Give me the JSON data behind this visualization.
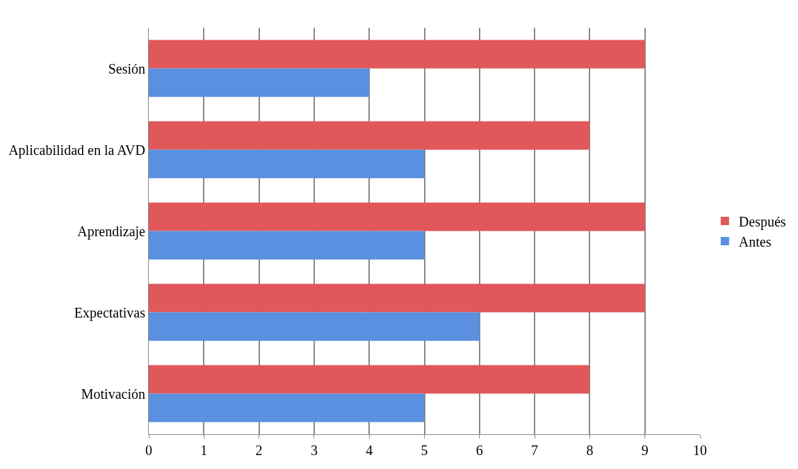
{
  "chart_data": {
    "type": "bar",
    "orientation": "horizontal",
    "categories": [
      "Sesión",
      "Aplicabilidad en la AVD",
      "Aprendizaje",
      "Expectativas",
      "Motivación"
    ],
    "series": [
      {
        "name": "Después",
        "color": "#e0585a",
        "values": [
          9,
          8,
          9,
          9,
          8
        ]
      },
      {
        "name": "Antes",
        "color": "#5b8fe0",
        "values": [
          4,
          5,
          5,
          6,
          5
        ]
      }
    ],
    "xlim": [
      0,
      10
    ],
    "xticks": [
      0,
      1,
      2,
      3,
      4,
      5,
      6,
      7,
      8,
      9,
      10
    ],
    "grid": "x",
    "legend": "right"
  }
}
